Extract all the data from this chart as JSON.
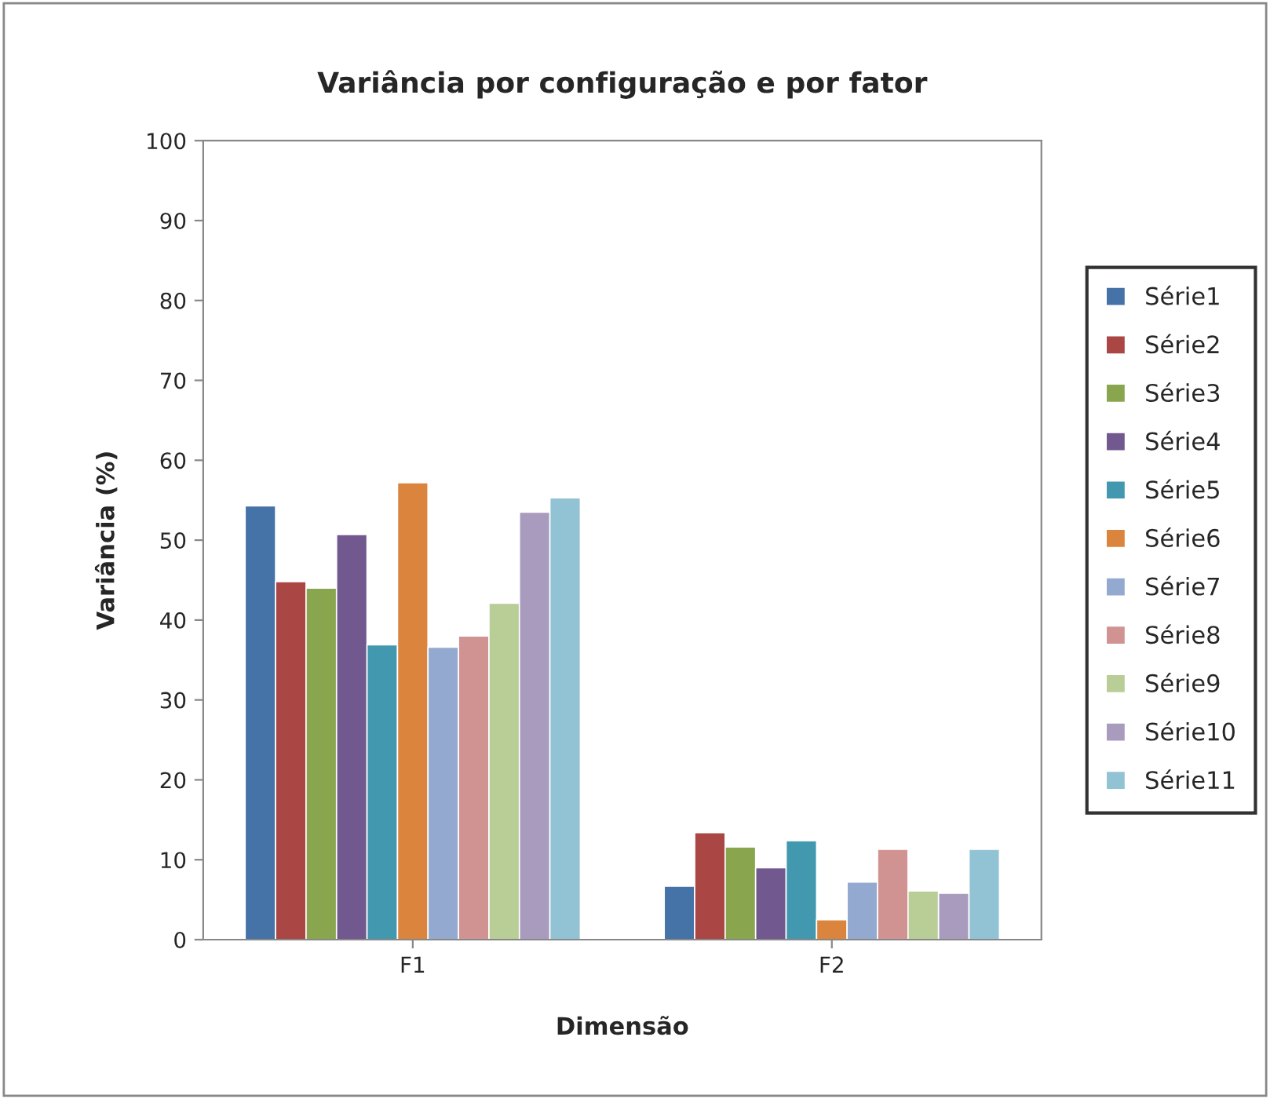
{
  "chart_data": {
    "type": "bar",
    "title": "Variância por configuração e por fator",
    "xlabel": "Dimensão",
    "ylabel": "Variância (%)",
    "categories": [
      "F1",
      "F2"
    ],
    "ylim": [
      0,
      100
    ],
    "yticks": [
      0,
      10,
      20,
      30,
      40,
      50,
      60,
      70,
      80,
      90,
      100
    ],
    "grid": false,
    "legend": "right",
    "series": [
      {
        "name": "Série1",
        "color": "#4572a7",
        "values": [
          54.3,
          6.7
        ]
      },
      {
        "name": "Série2",
        "color": "#aa4643",
        "values": [
          44.8,
          13.4
        ]
      },
      {
        "name": "Série3",
        "color": "#89a54e",
        "values": [
          44.0,
          11.6
        ]
      },
      {
        "name": "Série4",
        "color": "#71588f",
        "values": [
          50.7,
          9.0
        ]
      },
      {
        "name": "Série5",
        "color": "#4198af",
        "values": [
          36.9,
          12.4
        ]
      },
      {
        "name": "Série6",
        "color": "#db843d",
        "values": [
          57.2,
          2.5
        ]
      },
      {
        "name": "Série7",
        "color": "#93a9cf",
        "values": [
          36.6,
          7.2
        ]
      },
      {
        "name": "Série8",
        "color": "#d19392",
        "values": [
          38.0,
          11.3
        ]
      },
      {
        "name": "Série9",
        "color": "#b9cd96",
        "values": [
          42.1,
          6.1
        ]
      },
      {
        "name": "Série10",
        "color": "#a99bbd",
        "values": [
          53.5,
          5.8
        ]
      },
      {
        "name": "Série11",
        "color": "#92c3d4",
        "values": [
          55.3,
          11.3
        ]
      }
    ]
  }
}
